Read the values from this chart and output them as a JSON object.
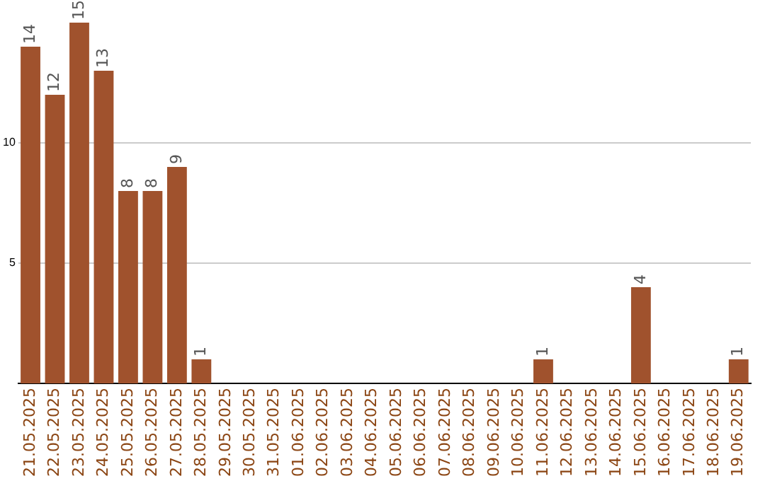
{
  "chart_data": {
    "type": "bar",
    "categories": [
      "21.05.2025",
      "22.05.2025",
      "23.05.2025",
      "24.05.2025",
      "25.05.2025",
      "26.05.2025",
      "27.05.2025",
      "28.05.2025",
      "29.05.2025",
      "30.05.2025",
      "31.05.2025",
      "01.06.2025",
      "02.06.2025",
      "03.06.2025",
      "04.06.2025",
      "05.06.2025",
      "06.06.2025",
      "07.06.2025",
      "08.06.2025",
      "09.06.2025",
      "10.06.2025",
      "11.06.2025",
      "12.06.2025",
      "13.06.2025",
      "14.06.2025",
      "15.06.2025",
      "16.06.2025",
      "17.06.2025",
      "18.06.2025",
      "19.06.2025"
    ],
    "values": [
      14,
      12,
      15,
      13,
      8,
      8,
      9,
      1,
      0,
      0,
      0,
      0,
      0,
      0,
      0,
      0,
      0,
      0,
      0,
      0,
      0,
      1,
      0,
      0,
      0,
      4,
      0,
      0,
      0,
      1
    ],
    "value_labels": [
      "14",
      "12",
      "15",
      "13",
      "8",
      "8",
      "9",
      "1",
      null,
      null,
      null,
      null,
      null,
      null,
      null,
      null,
      null,
      null,
      null,
      null,
      null,
      "1",
      null,
      null,
      null,
      "4",
      null,
      null,
      null,
      "1"
    ],
    "color": "#a0522d",
    "ylim": [
      0,
      15
    ],
    "yticks": [
      5,
      10
    ],
    "grid": "y",
    "legend": false
  }
}
